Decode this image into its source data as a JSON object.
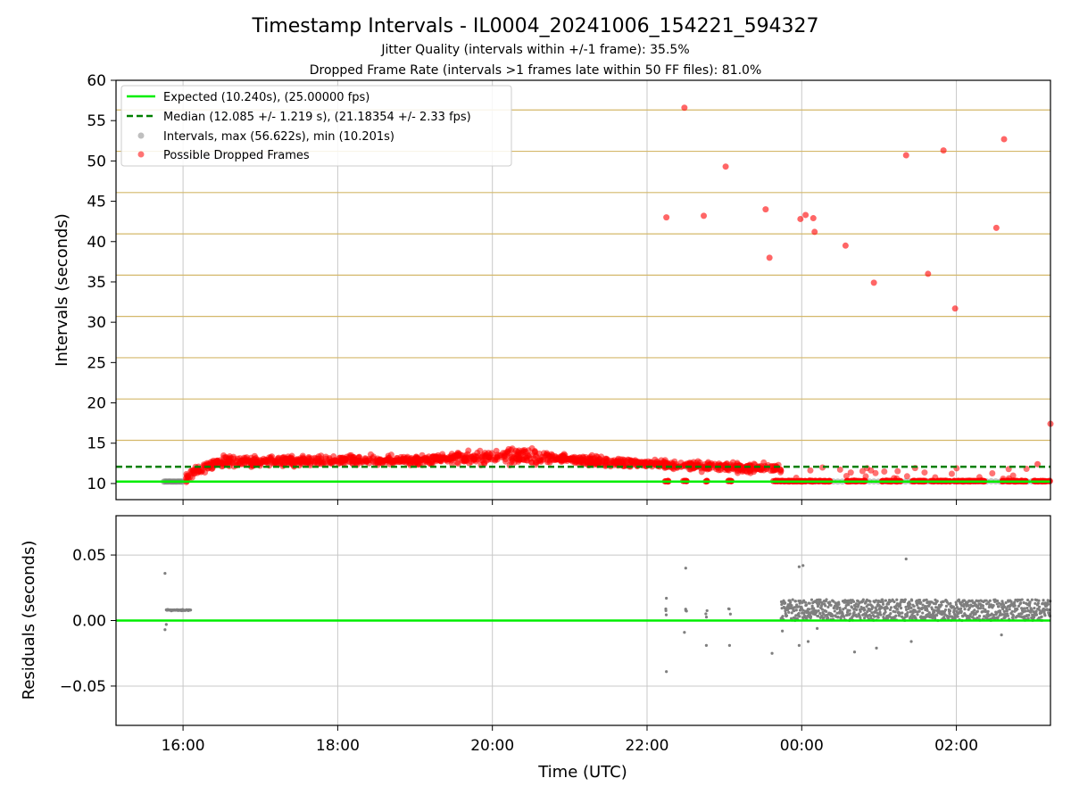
{
  "figure": {
    "title": "Timestamp Intervals - IL0004_20241006_154221_594327",
    "subtitle_1": "Jitter Quality (intervals within +/-1 frame): 35.5%",
    "subtitle_2": "Dropped Frame Rate (intervals >1 frames late within 50 FF files): 81.0%"
  },
  "colors": {
    "expected": "#00ee00",
    "median": "#007f00",
    "intervals": "#7f7f7f",
    "dropped": "#ff0000",
    "frame_lines": "#d4b86a",
    "grid": "#c8c8c8",
    "residuals": "#7f7f7f"
  },
  "chart_data": [
    {
      "type": "scatter",
      "panel": "top",
      "ylabel": "Intervals (seconds)",
      "ylim": [
        8,
        60
      ],
      "yticks": [
        10,
        15,
        20,
        25,
        30,
        35,
        40,
        45,
        50,
        55,
        60
      ],
      "xlim": [
        "15:08",
        "03:13"
      ],
      "grid": "x only; horizontal lines at frame multiples",
      "frame_lines": [
        15.36,
        20.48,
        25.6,
        30.72,
        35.84,
        40.96,
        46.08,
        51.2,
        56.32
      ],
      "legend": {
        "position": "top-left",
        "entries": [
          "Expected (10.240s), (25.00000 fps)",
          "Median (12.085 +/- 1.219 s), (21.18354 +/- 2.33 fps)",
          "Intervals, max (56.622s), min (10.201s)",
          "Possible Dropped Frames"
        ]
      },
      "expected_interval": 10.24,
      "median_interval": 12.085,
      "dropped_frame_outliers": [
        {
          "x": "22:15",
          "y": 43.0
        },
        {
          "x": "22:29",
          "y": 56.6
        },
        {
          "x": "22:44",
          "y": 43.2
        },
        {
          "x": "23:01",
          "y": 49.3
        },
        {
          "x": "23:32",
          "y": 44.0
        },
        {
          "x": "23:35",
          "y": 38.0
        },
        {
          "x": "23:59",
          "y": 42.8
        },
        {
          "x": "00:03",
          "y": 43.3
        },
        {
          "x": "00:09",
          "y": 42.9
        },
        {
          "x": "00:10",
          "y": 41.2
        },
        {
          "x": "00:34",
          "y": 39.5
        },
        {
          "x": "00:56",
          "y": 34.9
        },
        {
          "x": "01:21",
          "y": 50.7
        },
        {
          "x": "01:38",
          "y": 36.0
        },
        {
          "x": "01:50",
          "y": 51.3
        },
        {
          "x": "01:59",
          "y": 31.7
        },
        {
          "x": "02:31",
          "y": 41.7
        },
        {
          "x": "02:37",
          "y": 52.7
        },
        {
          "x": "03:03",
          "y": 12.4
        },
        {
          "x": "03:13",
          "y": 17.4
        }
      ],
      "trend_segments": [
        {
          "from": "16:02",
          "to": "16:10",
          "y_from": 10.6,
          "y_to": 11.6
        },
        {
          "from": "16:10",
          "to": "16:30",
          "y_from": 11.6,
          "y_to": 12.7
        },
        {
          "from": "16:30",
          "to": "19:00",
          "y_from": 12.7,
          "y_to": 12.9
        },
        {
          "from": "19:00",
          "to": "20:20",
          "y_from": 12.9,
          "y_to": 13.4
        },
        {
          "from": "20:20",
          "to": "22:00",
          "y_from": 13.4,
          "y_to": 12.4
        },
        {
          "from": "22:00",
          "to": "23:45",
          "y_from": 12.4,
          "y_to": 11.8
        }
      ]
    },
    {
      "type": "scatter",
      "panel": "bottom",
      "xlabel": "Time (UTC)",
      "ylabel": "Residuals (seconds)",
      "ylim": [
        -0.08,
        0.08
      ],
      "yticks": [
        -0.05,
        0.0,
        0.05
      ],
      "ytick_labels": [
        "−0.05",
        "0.00",
        "0.05"
      ],
      "xticks": [
        "16:00",
        "18:00",
        "20:00",
        "22:00",
        "00:00",
        "02:00"
      ],
      "grid": "on",
      "residual_outliers": [
        {
          "x": "15:46",
          "y": 0.036
        },
        {
          "x": "15:46",
          "y": -0.007
        },
        {
          "x": "15:47",
          "y": -0.003
        },
        {
          "x": "22:15",
          "y": 0.017
        },
        {
          "x": "22:15",
          "y": -0.039
        },
        {
          "x": "22:30",
          "y": 0.04
        },
        {
          "x": "22:29",
          "y": -0.009
        },
        {
          "x": "22:46",
          "y": -0.019
        },
        {
          "x": "23:04",
          "y": -0.019
        },
        {
          "x": "23:45",
          "y": -0.008
        },
        {
          "x": "23:37",
          "y": -0.025
        },
        {
          "x": "23:58",
          "y": 0.041
        },
        {
          "x": "00:01",
          "y": 0.042
        },
        {
          "x": "23:58",
          "y": -0.019
        },
        {
          "x": "00:05",
          "y": -0.016
        },
        {
          "x": "00:12",
          "y": -0.006
        },
        {
          "x": "00:41",
          "y": -0.024
        },
        {
          "x": "00:58",
          "y": -0.021
        },
        {
          "x": "01:21",
          "y": 0.047
        },
        {
          "x": "01:25",
          "y": -0.016
        },
        {
          "x": "02:35",
          "y": -0.011
        }
      ]
    }
  ]
}
